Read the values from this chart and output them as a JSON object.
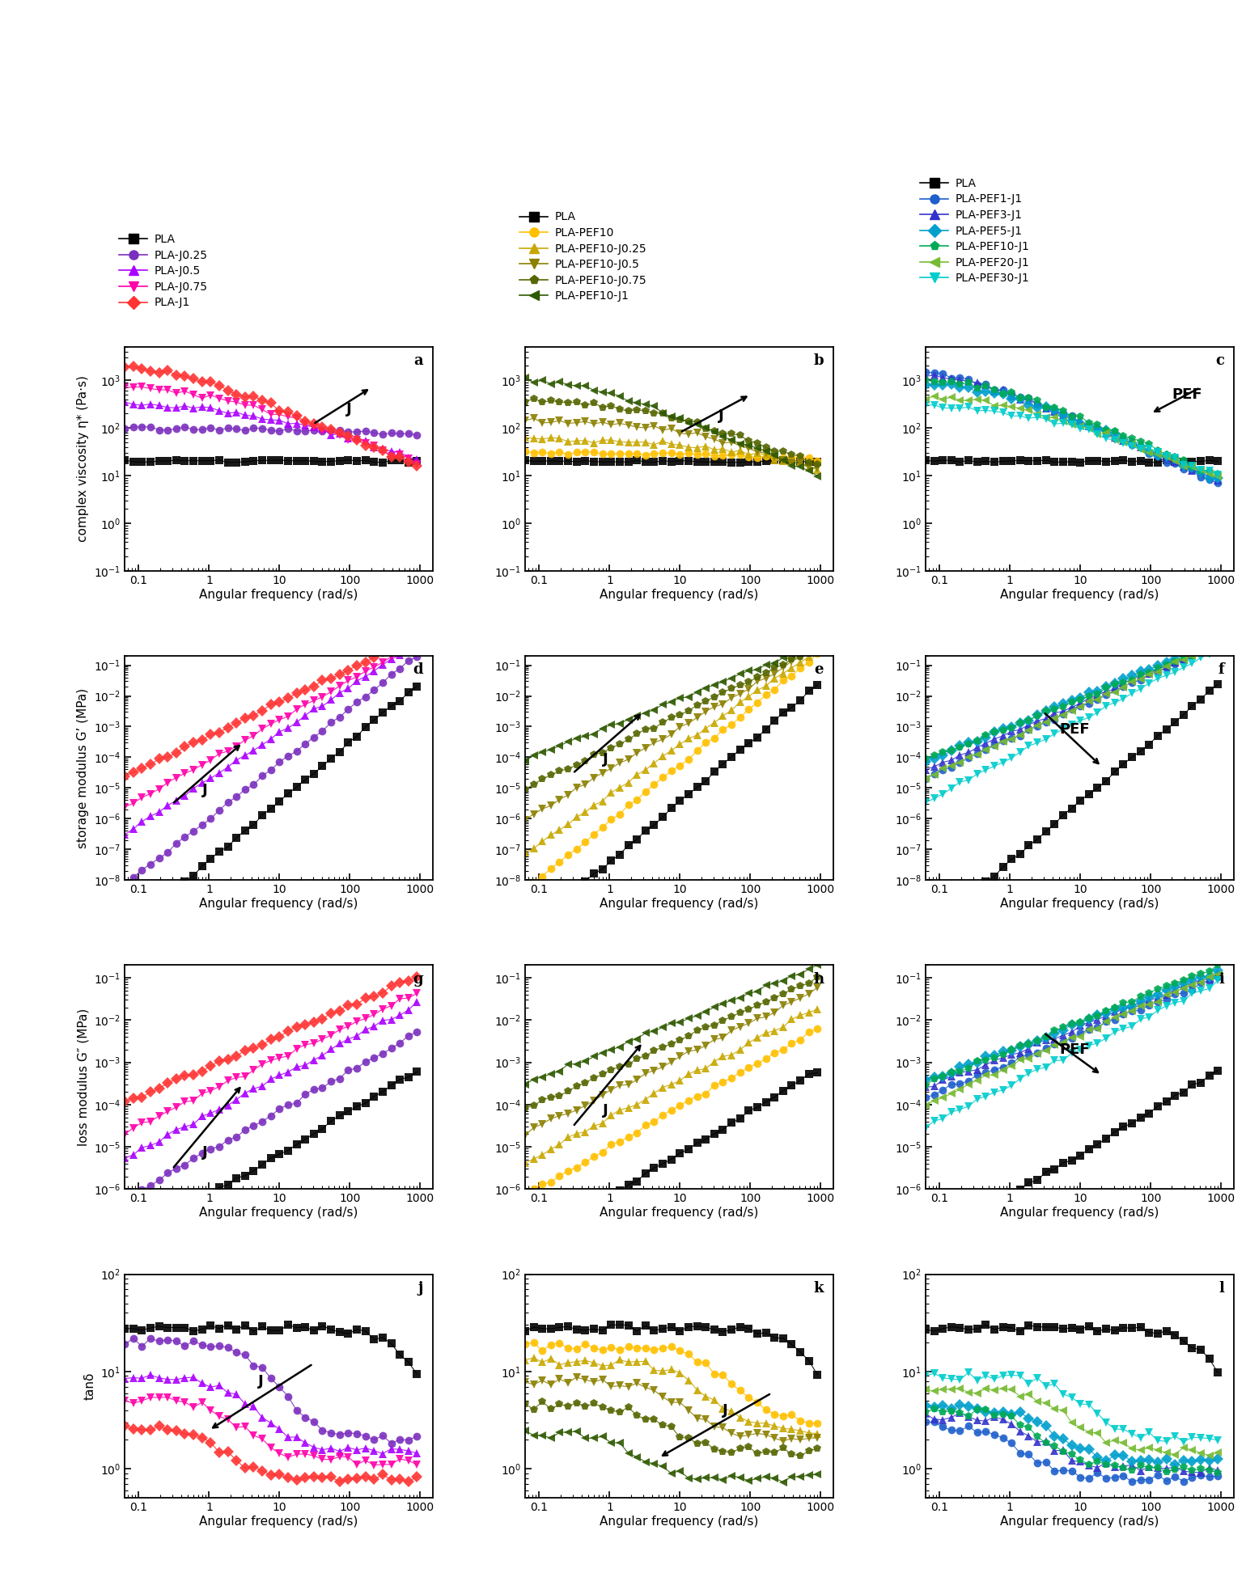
{
  "col1_labels": [
    "PLA",
    "PLA-J0.25",
    "PLA-J0.5",
    "PLA-J0.75",
    "PLA-J1"
  ],
  "col1_colors": [
    "#000000",
    "#7B2FBE",
    "#AA00FF",
    "#FF00AA",
    "#FF3333"
  ],
  "col1_markers": [
    "s",
    "o",
    "^",
    "v",
    "D"
  ],
  "col2_labels": [
    "PLA",
    "PLA-PEF10",
    "PLA-PEF10-J0.25",
    "PLA-PEF10-J0.5",
    "PLA-PEF10-J0.75",
    "PLA-PEF10-J1"
  ],
  "col2_colors": [
    "#000000",
    "#FFC000",
    "#C8A800",
    "#8B8000",
    "#556600",
    "#2E5900"
  ],
  "col2_markers": [
    "s",
    "o",
    "^",
    "v",
    "p",
    "<"
  ],
  "col3_labels": [
    "PLA",
    "PLA-PEF1-J1",
    "PLA-PEF3-J1",
    "PLA-PEF5-J1",
    "PLA-PEF10-J1",
    "PLA-PEF20-J1",
    "PLA-PEF30-J1"
  ],
  "col3_colors": [
    "#000000",
    "#1E5FCC",
    "#3333CC",
    "#009FCC",
    "#00AA55",
    "#77BB33",
    "#00CCCC"
  ],
  "col3_markers": [
    "s",
    "o",
    "^",
    "D",
    "p",
    "<",
    "v"
  ],
  "xlabel": "Angular frequency (rad/s)",
  "row0_ylabel": "complex viscosity η* (Pa·s)",
  "row1_ylabel": "storage modulus G’ (MPa)",
  "row2_ylabel": "loss modulus G″ (MPa)",
  "row3_ylabel": "tanδ",
  "subplot_labels": [
    "a",
    "b",
    "c",
    "d",
    "e",
    "f",
    "g",
    "h",
    "i",
    "j",
    "k",
    "l"
  ]
}
